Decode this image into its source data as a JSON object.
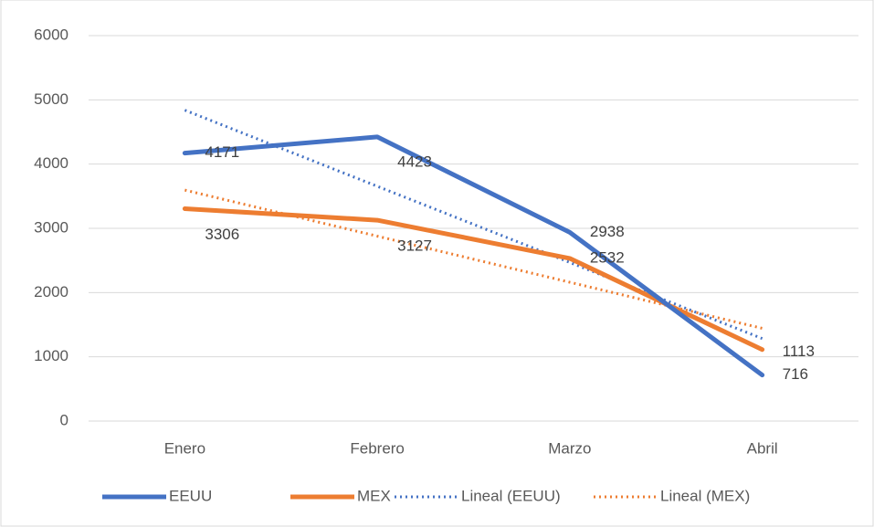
{
  "chart_data": {
    "type": "line",
    "categories": [
      "Enero",
      "Febrero",
      "Marzo",
      "Abril"
    ],
    "series": [
      {
        "name": "EEUU",
        "color": "#4472c4",
        "style": "solid",
        "values": [
          4171,
          4423,
          2938,
          716
        ],
        "data_labels": true
      },
      {
        "name": "MEX",
        "color": "#ed7d31",
        "style": "solid",
        "values": [
          3306,
          3127,
          2532,
          1113
        ],
        "data_labels": true
      },
      {
        "name": "Lineal (EEUU)",
        "color": "#4472c4",
        "style": "dotted",
        "values": [
          4839.5,
          3654.5,
          2469.5,
          1284.5
        ]
      },
      {
        "name": "Lineal (MEX)",
        "color": "#ed7d31",
        "style": "dotted",
        "values": [
          3595.6,
          2878.2,
          2160.8,
          1443.4
        ]
      }
    ],
    "ylim": [
      0,
      6000
    ],
    "yticks": [
      0,
      1000,
      2000,
      3000,
      4000,
      5000,
      6000
    ],
    "grid": true,
    "legend": "bottom"
  }
}
